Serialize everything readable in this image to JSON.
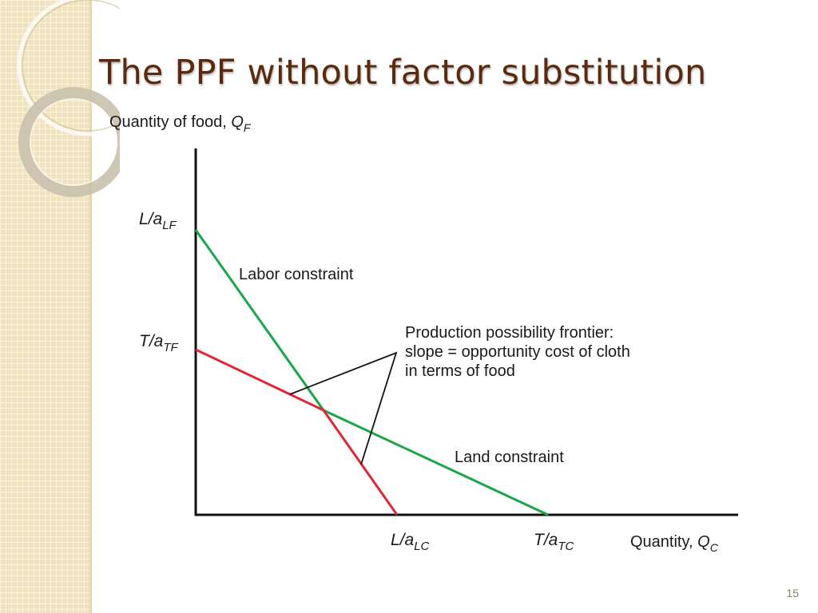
{
  "slide": {
    "title": "The PPF without factor substitution",
    "page_number": "15"
  },
  "diagram": {
    "y_axis_label": {
      "text": "Quantity of food, ",
      "var": "Q",
      "sub": "F"
    },
    "x_axis_label": {
      "text": "Quantity, ",
      "var": "Q",
      "sub": "C"
    },
    "y_ticks": [
      {
        "main": "L/a",
        "sub": "LF"
      },
      {
        "main": "T/a",
        "sub": "TF"
      }
    ],
    "x_ticks": [
      {
        "main": "L/a",
        "sub": "LC"
      },
      {
        "main": "T/a",
        "sub": "TC"
      }
    ],
    "labels": {
      "labor_constraint": "Labor constraint",
      "land_constraint": "Land constraint",
      "ppf_line1": "Production possibility frontier:",
      "ppf_line2": "slope = opportunity cost of cloth",
      "ppf_line3": "in terms of food"
    },
    "colors": {
      "labor": "#1aa64a",
      "land": "#1aa64a",
      "ppf": "#e32636",
      "axes": "#111111"
    }
  }
}
